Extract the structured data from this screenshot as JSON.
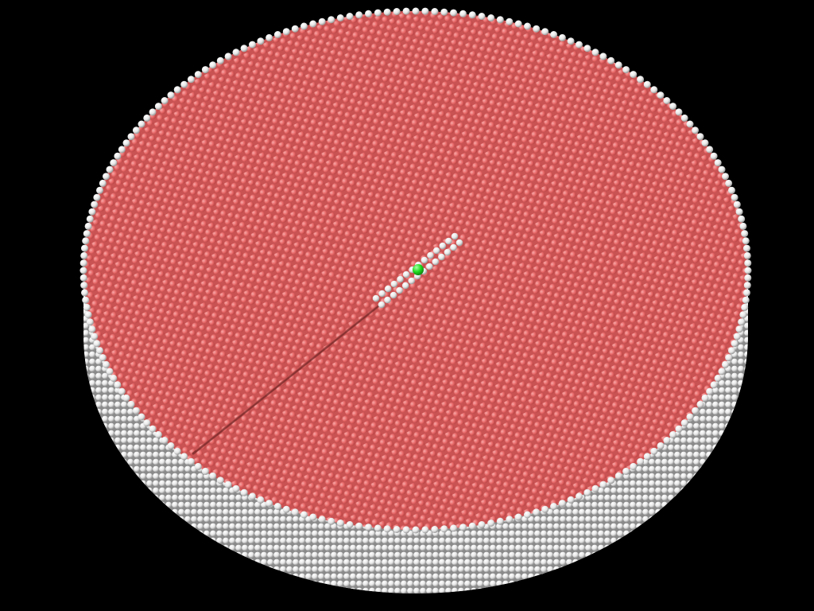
{
  "scene": {
    "subject": "atomic-disk-slab",
    "background_color": "#000000",
    "colors": {
      "top_surface_atom": "#e96a6a",
      "top_surface_atom_highlight": "#f7a8a8",
      "top_surface_atom_shadow": "#b94343",
      "side_atom": "#f2f2f2",
      "side_atom_shadow": "#9a9a9a",
      "defect_atom": "#f2f2f2",
      "marker_atom": "#22dd22"
    },
    "defect": {
      "kind": "crack-with-white-atoms",
      "marker_count": 1
    }
  }
}
